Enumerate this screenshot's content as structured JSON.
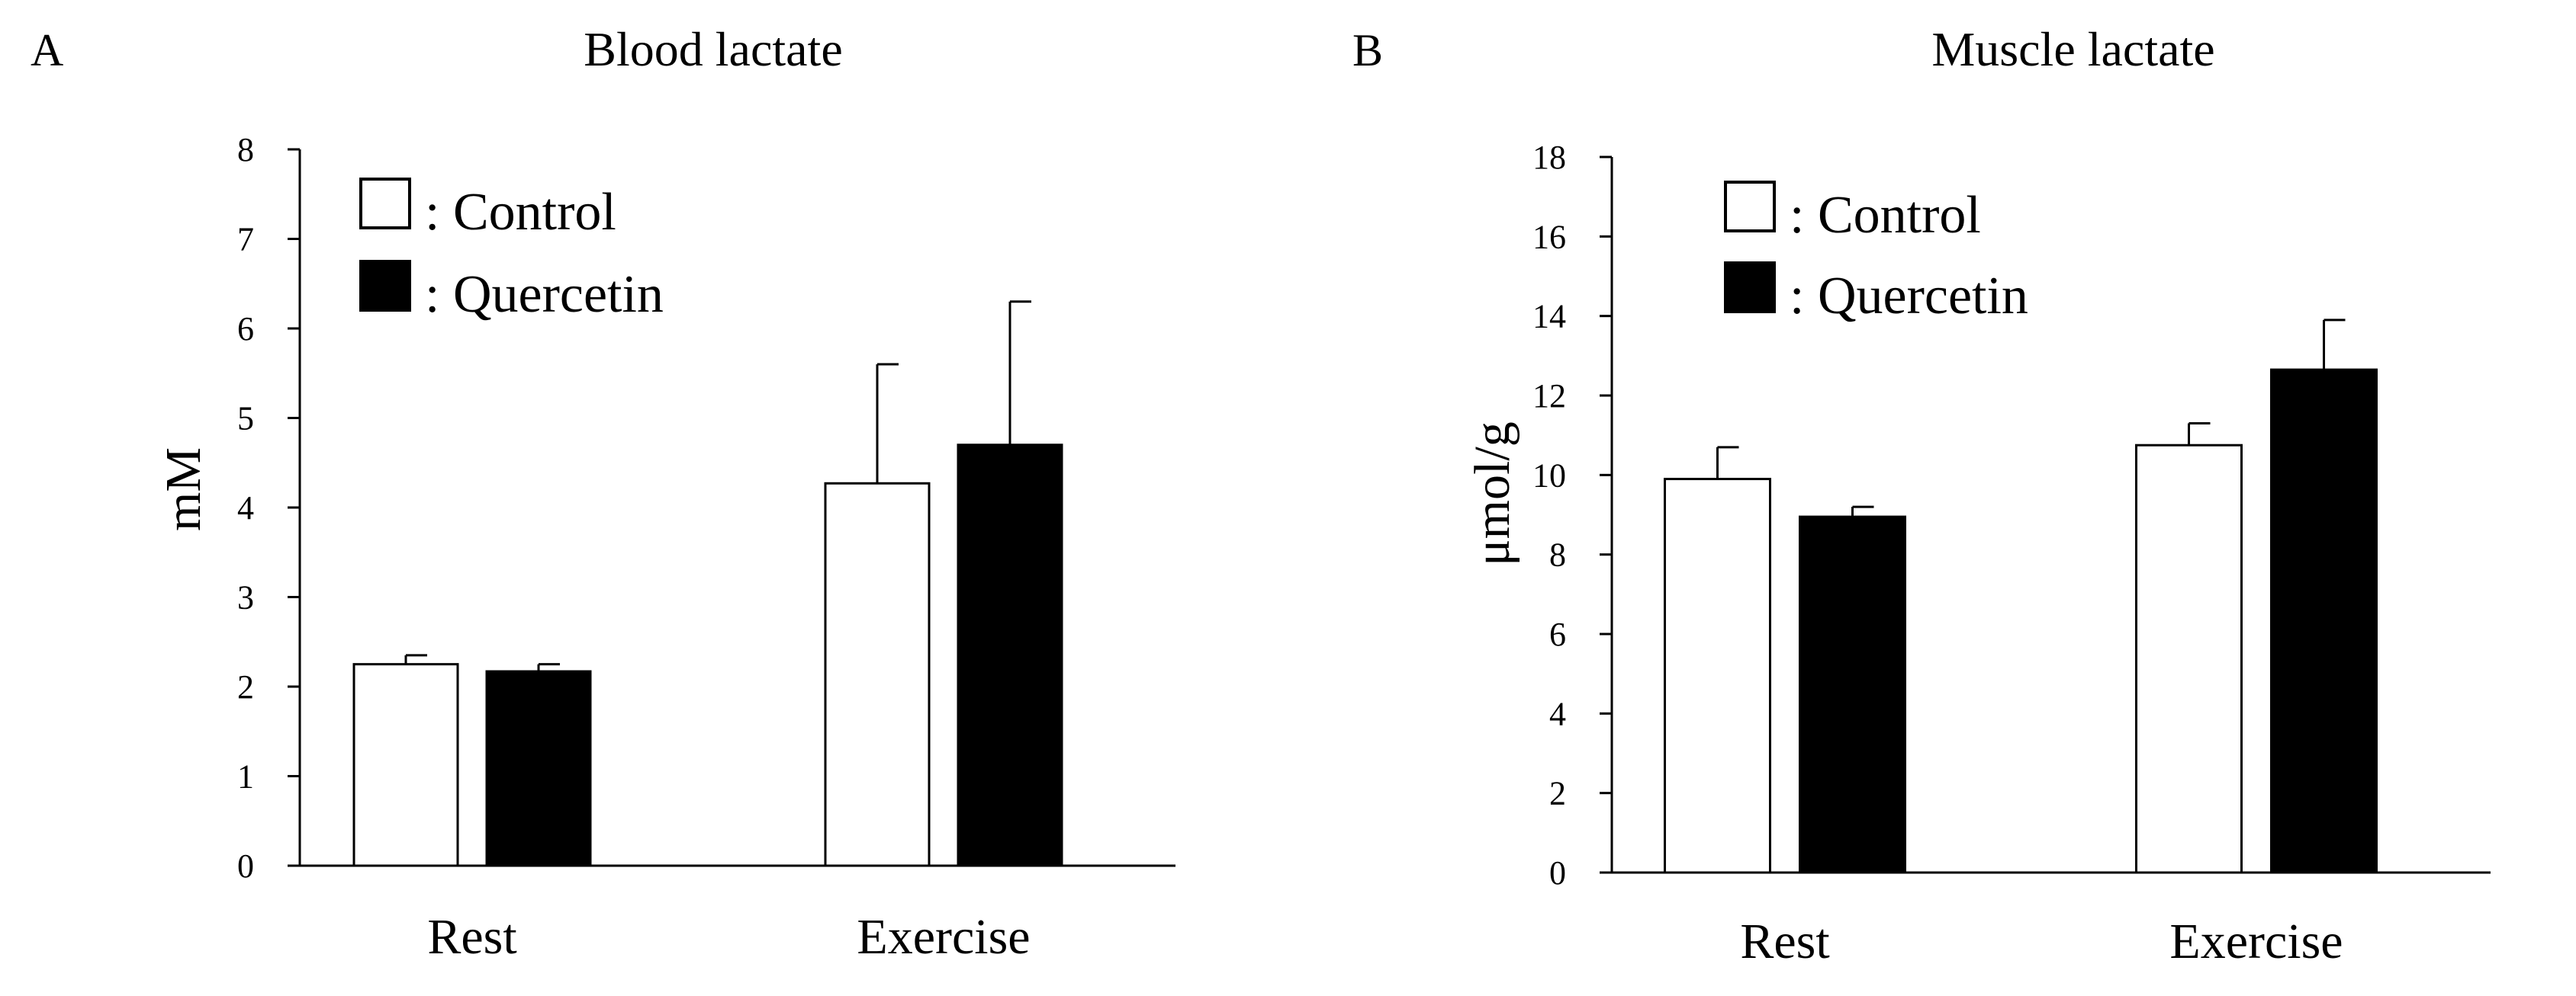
{
  "colors": {
    "control": "#ffffff",
    "quercetin": "#000000",
    "axis": "#000000"
  },
  "chart_data": [
    {
      "type": "bar",
      "panel_label": "A",
      "title": "Blood lactate",
      "xlabel": "",
      "ylabel": "mM",
      "ylim": [
        0,
        8
      ],
      "yticks": [
        0,
        1,
        2,
        3,
        4,
        5,
        6,
        7,
        8
      ],
      "grid": false,
      "legend_position": "top-left",
      "categories": [
        "Rest",
        "Exercise"
      ],
      "series": [
        {
          "name": "Control",
          "legend_label": ": Control",
          "color": "#ffffff",
          "values": [
            2.25,
            4.27
          ],
          "errors": [
            0.1,
            1.33
          ]
        },
        {
          "name": "Quercetin",
          "legend_label": ": Quercetin",
          "color": "#000000",
          "values": [
            2.17,
            4.7
          ],
          "errors": [
            0.08,
            1.6
          ]
        }
      ]
    },
    {
      "type": "bar",
      "panel_label": "B",
      "title": "Muscle lactate",
      "xlabel": "",
      "ylabel": "μmol/g",
      "ylim": [
        0,
        18
      ],
      "yticks": [
        0,
        2,
        4,
        6,
        8,
        10,
        12,
        14,
        16,
        18
      ],
      "grid": false,
      "legend_position": "top-left",
      "categories": [
        "Rest",
        "Exercise"
      ],
      "series": [
        {
          "name": "Control",
          "legend_label": ": Control",
          "color": "#ffffff",
          "values": [
            9.9,
            10.75
          ],
          "errors": [
            0.8,
            0.55
          ]
        },
        {
          "name": "Quercetin",
          "legend_label": ": Quercetin",
          "color": "#000000",
          "values": [
            8.95,
            12.65
          ],
          "errors": [
            0.25,
            1.25
          ]
        }
      ]
    }
  ]
}
